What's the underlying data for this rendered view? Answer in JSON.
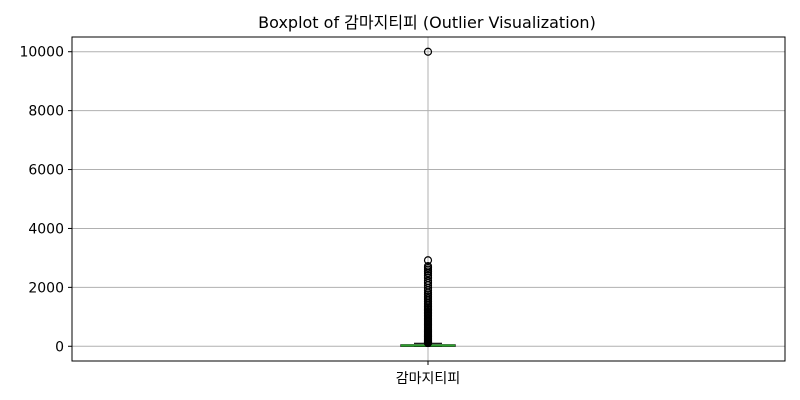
{
  "chart_data": {
    "type": "box",
    "title": "Boxplot of 감마지티피 (Outlier Visualization)",
    "xlabel": "",
    "ylabel": "",
    "categories": [
      "감마지티피"
    ],
    "ylim": [
      -500,
      10500
    ],
    "yticks": [
      0,
      2000,
      4000,
      6000,
      8000,
      10000
    ],
    "ytick_labels": [
      "0",
      "2000",
      "4000",
      "6000",
      "8000",
      "10000"
    ],
    "grid": true,
    "box": {
      "q1": 15,
      "median": 25,
      "q3": 50,
      "whisker_low": 1,
      "whisker_high": 100
    },
    "outliers": [
      10000,
      2920,
      2720,
      2660,
      2600,
      2540,
      2480,
      2400,
      2320,
      2220,
      2150,
      2070,
      1980,
      1900,
      1820,
      1760,
      1700,
      1640,
      1580,
      1520,
      1460,
      1400,
      1350,
      1300,
      1250,
      1200,
      1150,
      1100,
      1050,
      1000,
      950,
      900,
      860,
      820,
      780,
      740,
      700,
      660,
      620,
      580,
      540,
      500,
      470,
      440,
      410,
      380,
      350,
      320,
      290,
      260,
      235,
      210,
      190,
      170,
      150,
      135,
      120,
      110
    ],
    "colors": {
      "box": "#000000",
      "median": "#2ca02c",
      "grid": "#b0b0b0"
    }
  }
}
